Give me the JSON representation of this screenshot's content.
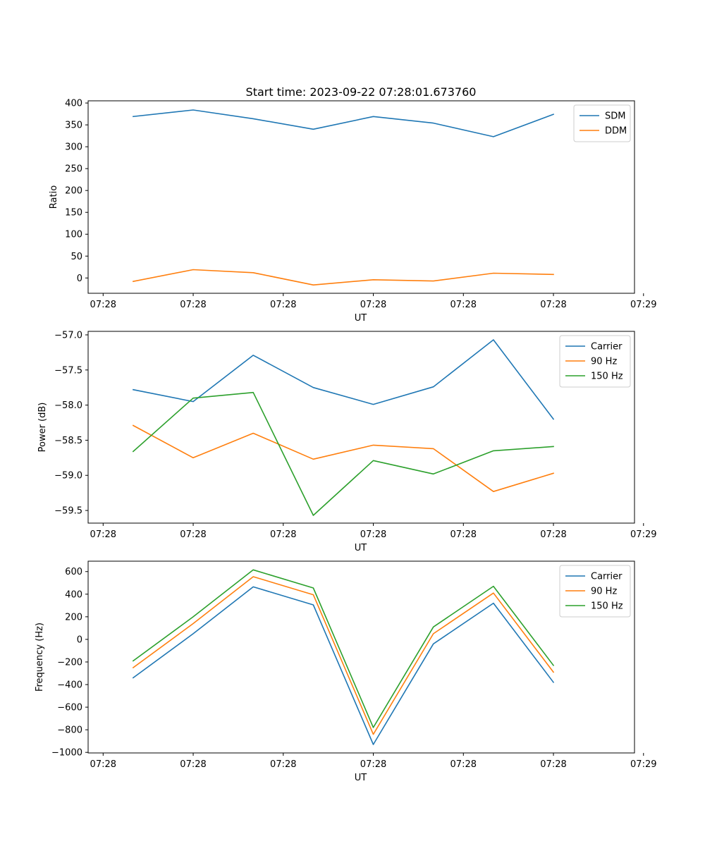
{
  "chart_data": [
    {
      "type": "line",
      "title": "Start time: 2023-09-22 07:28:01.673760",
      "xlabel": "UT",
      "ylabel": "Ratio",
      "x_index": [
        0,
        1,
        2,
        3,
        4,
        5,
        6,
        7
      ],
      "xlim": [
        -0.75,
        8.35
      ],
      "x_ticks": [
        -0.5,
        1,
        2.5,
        4,
        5.5,
        7,
        8.5
      ],
      "x_tick_labels": [
        "07:28",
        "07:28",
        "07:28",
        "07:28",
        "07:28",
        "07:28",
        "07:29"
      ],
      "ylim": [
        -35,
        405
      ],
      "y_ticks": [
        0,
        50,
        100,
        150,
        200,
        250,
        300,
        350,
        400
      ],
      "y_tick_labels": [
        "0",
        "50",
        "100",
        "150",
        "200",
        "250",
        "300",
        "350",
        "400"
      ],
      "legend_position": "upper-right",
      "series": [
        {
          "name": "SDM",
          "color": "#1f77b4",
          "values": [
            369,
            384,
            364,
            340,
            369,
            354,
            323,
            374
          ]
        },
        {
          "name": "DDM",
          "color": "#ff7f0e",
          "values": [
            -8,
            19,
            12,
            -16,
            -4,
            -7,
            11,
            8
          ]
        }
      ]
    },
    {
      "type": "line",
      "title": "",
      "xlabel": "UT",
      "ylabel": "Power (dB)",
      "x_index": [
        0,
        1,
        2,
        3,
        4,
        5,
        6,
        7
      ],
      "xlim": [
        -0.75,
        8.35
      ],
      "x_ticks": [
        -0.5,
        1,
        2.5,
        4,
        5.5,
        7,
        8.5
      ],
      "x_tick_labels": [
        "07:28",
        "07:28",
        "07:28",
        "07:28",
        "07:28",
        "07:28",
        "07:29"
      ],
      "ylim": [
        -59.68,
        -56.95
      ],
      "y_ticks": [
        -59.5,
        -59.0,
        -58.5,
        -58.0,
        -57.5,
        -57.0
      ],
      "y_tick_labels": [
        "−59.5",
        "−59.0",
        "−58.5",
        "−58.0",
        "−57.5",
        "−57.0"
      ],
      "legend_position": "upper-right",
      "series": [
        {
          "name": "Carrier",
          "color": "#1f77b4",
          "values": [
            -57.78,
            -57.95,
            -57.29,
            -57.75,
            -57.99,
            -57.74,
            -57.07,
            -58.2
          ]
        },
        {
          "name": "90 Hz",
          "color": "#ff7f0e",
          "values": [
            -58.29,
            -58.75,
            -58.4,
            -58.77,
            -58.57,
            -58.62,
            -59.23,
            -58.97
          ]
        },
        {
          "name": "150 Hz",
          "color": "#2ca02c",
          "values": [
            -58.66,
            -57.9,
            -57.82,
            -59.57,
            -58.79,
            -58.98,
            -58.65,
            -58.59
          ]
        }
      ]
    },
    {
      "type": "line",
      "title": "",
      "xlabel": "UT",
      "ylabel": "Frequency (Hz)",
      "x_index": [
        0,
        1,
        2,
        3,
        4,
        5,
        6,
        7
      ],
      "xlim": [
        -0.75,
        8.35
      ],
      "x_ticks": [
        -0.5,
        1,
        2.5,
        4,
        5.5,
        7,
        8.5
      ],
      "x_tick_labels": [
        "07:28",
        "07:28",
        "07:28",
        "07:28",
        "07:28",
        "07:28",
        "07:29"
      ],
      "ylim": [
        -1005,
        692
      ],
      "y_ticks": [
        -1000,
        -800,
        -600,
        -400,
        -200,
        0,
        200,
        400,
        600
      ],
      "y_tick_labels": [
        "−1000",
        "−800",
        "−600",
        "−400",
        "−200",
        "0",
        "200",
        "400",
        "600"
      ],
      "legend_position": "upper-right",
      "series": [
        {
          "name": "Carrier",
          "color": "#1f77b4",
          "values": [
            -340,
            50,
            465,
            305,
            -930,
            -40,
            320,
            -380
          ]
        },
        {
          "name": "90 Hz",
          "color": "#ff7f0e",
          "values": [
            -250,
            140,
            555,
            395,
            -840,
            50,
            410,
            -290
          ]
        },
        {
          "name": "150 Hz",
          "color": "#2ca02c",
          "values": [
            -190,
            200,
            615,
            455,
            -780,
            110,
            470,
            -230
          ]
        }
      ]
    }
  ]
}
